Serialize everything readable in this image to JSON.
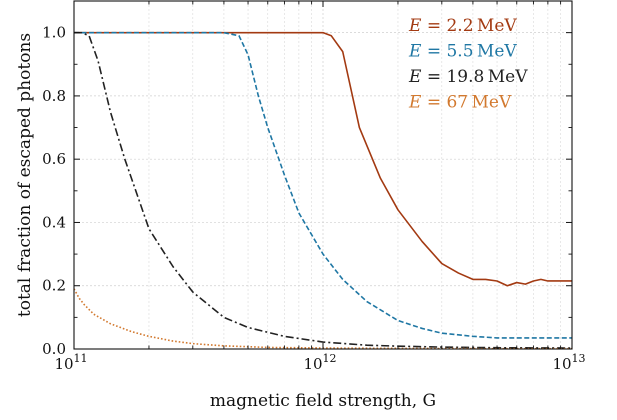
{
  "chart_data": {
    "type": "line",
    "title": "",
    "xlabel": "magnetic field strength, G",
    "ylabel": "total fraction of escaped photons",
    "xscale": "log",
    "xlim": [
      100000000000.0,
      10000000000000.0
    ],
    "ylim": [
      0.0,
      1.1
    ],
    "grid": true,
    "legend_placement": "top-right",
    "x_ticks": [
      {
        "base": "10",
        "exp": "11"
      },
      {
        "base": "10",
        "exp": "12"
      },
      {
        "base": "10",
        "exp": "13"
      }
    ],
    "y_ticks": [
      "0.0",
      "0.2",
      "0.4",
      "0.6",
      "0.8",
      "1.0"
    ],
    "series": [
      {
        "name": "E = 2.2 MeV",
        "color": "#a33a12",
        "style": "solid",
        "x": [
          100000000000.0,
          200000000000.0,
          500000000000.0,
          1000000000000.0,
          1080000000000.0,
          1200000000000.0,
          1400000000000.0,
          1700000000000.0,
          2000000000000.0,
          2500000000000.0,
          3000000000000.0,
          3500000000000.0,
          4000000000000.0,
          4500000000000.0,
          5000000000000.0,
          5500000000000.0,
          6000000000000.0,
          6500000000000.0,
          7000000000000.0,
          7500000000000.0,
          8000000000000.0,
          9000000000000.0,
          10000000000000.0
        ],
        "y": [
          1.0,
          1.0,
          1.0,
          1.0,
          0.99,
          0.94,
          0.7,
          0.54,
          0.44,
          0.34,
          0.27,
          0.24,
          0.22,
          0.22,
          0.215,
          0.2,
          0.21,
          0.205,
          0.215,
          0.22,
          0.215,
          0.215,
          0.215
        ]
      },
      {
        "name": "E = 5.5 MeV",
        "color": "#1f77a4",
        "style": "dashed",
        "x": [
          100000000000.0,
          200000000000.0,
          400000000000.0,
          460000000000.0,
          500000000000.0,
          550000000000.0,
          600000000000.0,
          700000000000.0,
          800000000000.0,
          1000000000000.0,
          1200000000000.0,
          1500000000000.0,
          2000000000000.0,
          2500000000000.0,
          3000000000000.0,
          4000000000000.0,
          5000000000000.0,
          7000000000000.0,
          10000000000000.0
        ],
        "y": [
          1.0,
          1.0,
          1.0,
          0.99,
          0.93,
          0.8,
          0.7,
          0.55,
          0.43,
          0.3,
          0.22,
          0.15,
          0.09,
          0.065,
          0.05,
          0.04,
          0.035,
          0.035,
          0.035
        ]
      },
      {
        "name": "E = 19.8 MeV",
        "color": "#222222",
        "style": "dashdot",
        "x": [
          100000000000.0,
          107000000000.0,
          115000000000.0,
          125000000000.0,
          140000000000.0,
          160000000000.0,
          200000000000.0,
          250000000000.0,
          300000000000.0,
          400000000000.0,
          500000000000.0,
          700000000000.0,
          1000000000000.0,
          1500000000000.0,
          2000000000000.0,
          3000000000000.0,
          5000000000000.0,
          10000000000000.0
        ],
        "y": [
          1.0,
          1.0,
          0.99,
          0.91,
          0.75,
          0.6,
          0.38,
          0.26,
          0.18,
          0.1,
          0.068,
          0.04,
          0.022,
          0.012,
          0.009,
          0.006,
          0.004,
          0.003
        ]
      },
      {
        "name": "E = 67 MeV",
        "color": "#d2792f",
        "style": "dotted",
        "x": [
          100000000000.0,
          105000000000.0,
          110000000000.0,
          120000000000.0,
          140000000000.0,
          170000000000.0,
          200000000000.0,
          250000000000.0,
          300000000000.0,
          400000000000.0,
          600000000000.0,
          1000000000000.0,
          2000000000000.0,
          5000000000000.0,
          10000000000000.0
        ],
        "y": [
          0.19,
          0.16,
          0.14,
          0.11,
          0.08,
          0.055,
          0.04,
          0.025,
          0.017,
          0.01,
          0.005,
          0.003,
          0.002,
          0.001,
          0.001
        ]
      }
    ],
    "legend": [
      {
        "var": "E",
        "eq": " = ",
        "num": "2.2",
        "unit": "MeV"
      },
      {
        "var": "E",
        "eq": " = ",
        "num": "5.5",
        "unit": "MeV"
      },
      {
        "var": "E",
        "eq": " = ",
        "num": "19.8",
        "unit": "MeV"
      },
      {
        "var": "E",
        "eq": " = ",
        "num": "67",
        "unit": "MeV"
      }
    ]
  }
}
